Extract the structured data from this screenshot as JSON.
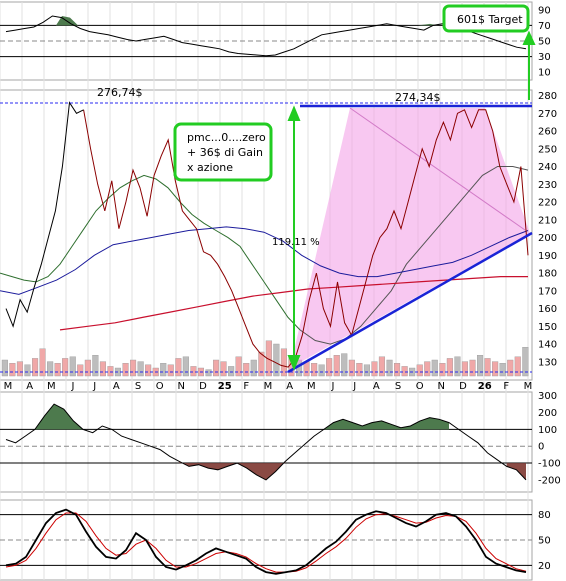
{
  "chart_data": [
    {
      "type": "line",
      "panel": "rsi",
      "y_ticks": [
        "90",
        "70",
        "50",
        "30",
        "10"
      ],
      "ylim": [
        0,
        100
      ],
      "reference_lines": [
        70,
        50,
        30
      ],
      "series": [
        {
          "values": [
            62,
            64,
            66,
            68,
            74,
            82,
            80,
            72,
            66,
            62,
            60,
            58,
            55,
            52,
            50,
            52,
            54,
            56,
            52,
            48,
            46,
            44,
            42,
            40,
            36,
            34,
            33,
            32,
            31,
            32,
            36,
            40,
            46,
            52,
            58,
            60,
            62,
            64,
            66,
            68,
            70,
            72,
            70,
            68,
            66,
            64,
            70,
            72,
            68,
            64,
            62,
            58,
            54,
            50,
            46,
            42,
            40
          ]
        }
      ],
      "annotation": "601$ Target"
    },
    {
      "type": "line",
      "panel": "price",
      "y_ticks": [
        "280",
        "270",
        "260",
        "250",
        "240",
        "230",
        "220",
        "210",
        "200",
        "190",
        "180",
        "170",
        "160",
        "150",
        "140",
        "130"
      ],
      "ylim": [
        122,
        282
      ],
      "x_ticks": [
        "M",
        "A",
        "M",
        "J",
        "J",
        "A",
        "S",
        "O",
        "N",
        "D",
        "25",
        "F",
        "M",
        "A",
        "M",
        "J",
        "J",
        "A",
        "S",
        "O",
        "N",
        "D",
        "26",
        "F",
        "M"
      ],
      "price": [
        160,
        150,
        165,
        158,
        172,
        185,
        200,
        215,
        240,
        276,
        270,
        272,
        250,
        230,
        215,
        232,
        205,
        220,
        238,
        228,
        212,
        235,
        246,
        255,
        232,
        215,
        210,
        205,
        192,
        190,
        185,
        178,
        170,
        160,
        150,
        140,
        135,
        132,
        130,
        128,
        127,
        132,
        145,
        165,
        180,
        160,
        150,
        175,
        152,
        145,
        160,
        175,
        190,
        200,
        205,
        215,
        205,
        220,
        235,
        250,
        240,
        255,
        265,
        255,
        270,
        272,
        262,
        272,
        272,
        260,
        240,
        230,
        220,
        240,
        190
      ],
      "ma_short": [
        180,
        178,
        176,
        175,
        178,
        185,
        195,
        205,
        215,
        222,
        228,
        232,
        235,
        233,
        228,
        220,
        213,
        208,
        204,
        200,
        195,
        185,
        175,
        165,
        155,
        148,
        142,
        140,
        143,
        150,
        160,
        170,
        185,
        195,
        205,
        215,
        225,
        235,
        240,
        240,
        238
      ],
      "ma_long": [
        148,
        150,
        152,
        155,
        158,
        161,
        164,
        167,
        169,
        171,
        172,
        173,
        174,
        175,
        176,
        177,
        178,
        178
      ],
      "ma_mid": [
        170,
        168,
        172,
        176,
        182,
        190,
        196,
        198,
        200,
        202,
        204,
        205,
        206,
        205,
        203,
        198,
        190,
        184,
        180,
        178,
        178,
        180,
        182,
        184,
        186,
        190,
        195,
        200,
        204
      ],
      "volume": [
        20,
        16,
        18,
        14,
        22,
        34,
        18,
        16,
        22,
        24,
        14,
        20,
        26,
        18,
        12,
        10,
        16,
        20,
        18,
        14,
        10,
        16,
        14,
        22,
        24,
        12,
        10,
        8,
        20,
        18,
        12,
        24,
        16,
        20,
        30,
        44,
        40,
        34,
        24,
        20,
        18,
        16,
        14,
        22,
        26,
        28,
        20,
        16,
        14,
        18,
        24,
        20,
        16,
        12,
        10,
        14,
        18,
        20,
        16,
        22,
        24,
        18,
        20,
        26,
        22,
        18,
        16,
        20,
        24,
        36
      ],
      "annotations": [
        "276,74$",
        "274,34$",
        "119.11 %",
        "pmc...0....zero",
        "+ 36$ di Gain",
        "x azione"
      ]
    },
    {
      "type": "line",
      "panel": "cci",
      "y_ticks": [
        "300",
        "200",
        "100",
        "0",
        "-100",
        "-200"
      ],
      "ylim": [
        -260,
        310
      ],
      "reference_lines": [
        100,
        0,
        -100
      ],
      "series": [
        {
          "values": [
            40,
            20,
            60,
            100,
            180,
            250,
            220,
            150,
            100,
            80,
            120,
            100,
            60,
            40,
            20,
            0,
            -20,
            -60,
            -90,
            -120,
            -110,
            -130,
            -140,
            -120,
            -100,
            -130,
            -170,
            -200,
            -150,
            -90,
            -40,
            10,
            60,
            100,
            140,
            160,
            140,
            120,
            140,
            150,
            130,
            110,
            120,
            150,
            170,
            160,
            140,
            100,
            60,
            20,
            -40,
            -80,
            -120,
            -140,
            -200
          ]
        }
      ]
    },
    {
      "type": "line",
      "panel": "stochastic",
      "y_ticks": [
        "80",
        "50",
        "20"
      ],
      "ylim": [
        5,
        95
      ],
      "reference_lines": [
        80,
        50,
        20
      ],
      "series": [
        {
          "color": "#000000",
          "values": [
            20,
            22,
            30,
            50,
            70,
            82,
            86,
            80,
            60,
            42,
            30,
            28,
            38,
            58,
            50,
            30,
            18,
            15,
            20,
            26,
            34,
            40,
            36,
            32,
            28,
            18,
            12,
            10,
            12,
            14,
            20,
            30,
            40,
            48,
            60,
            74,
            80,
            84,
            82,
            76,
            70,
            66,
            72,
            80,
            82,
            78,
            66,
            50,
            30,
            22,
            18,
            14,
            12
          ]
        },
        {
          "color": "#cc0000",
          "values": [
            18,
            20,
            26,
            40,
            58,
            74,
            82,
            82,
            72,
            55,
            40,
            32,
            34,
            45,
            50,
            40,
            26,
            18,
            18,
            22,
            28,
            34,
            36,
            34,
            30,
            22,
            16,
            12,
            12,
            13,
            17,
            25,
            34,
            42,
            52,
            65,
            75,
            80,
            81,
            78,
            74,
            70,
            71,
            76,
            79,
            78,
            72,
            58,
            40,
            28,
            22,
            16,
            13
          ]
        }
      ]
    }
  ]
}
